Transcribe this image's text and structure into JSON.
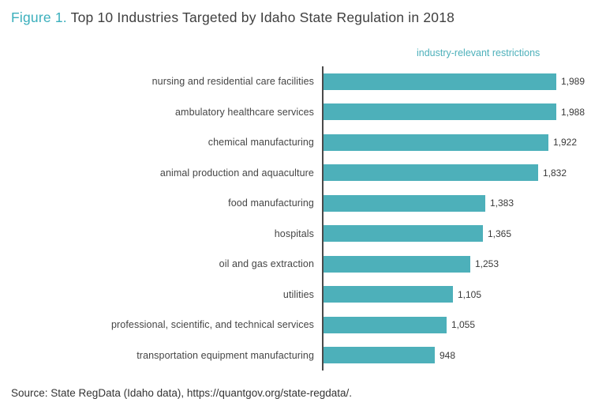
{
  "title": {
    "prefix": "Figure 1.",
    "rest": " Top 10 Industries Targeted by Idaho State Regulation in 2018"
  },
  "source": "Source: State RegData (Idaho data), https://quantgov.org/state-regdata/.",
  "colors": {
    "bar": "#4db0ba",
    "title_accent": "#3aafbc",
    "axis": "#4a4a4a",
    "text": "#3f3f3f"
  },
  "chart_data": {
    "type": "bar",
    "orientation": "horizontal",
    "title": "Top 10 Industries Targeted by Idaho State Regulation in 2018",
    "series_label": "industry-relevant restrictions",
    "categories": [
      "nursing and residential care facilities",
      "ambulatory healthcare services",
      "chemical manufacturing",
      "animal production and aquaculture",
      "food manufacturing",
      "hospitals",
      "oil and gas extraction",
      "utilities",
      "professional, scientific, and technical services",
      "transportation equipment manufacturing"
    ],
    "values": [
      1989,
      1988,
      1922,
      1832,
      1383,
      1365,
      1253,
      1105,
      1055,
      948
    ],
    "value_labels": [
      "1,989",
      "1,988",
      "1,922",
      "1,832",
      "1,383",
      "1,365",
      "1,253",
      "1,105",
      "1,055",
      "948"
    ],
    "xlabel": "industry-relevant restrictions",
    "ylabel": "",
    "xlim": [
      0,
      1989
    ],
    "grid": false,
    "legend_position": "top-right"
  }
}
